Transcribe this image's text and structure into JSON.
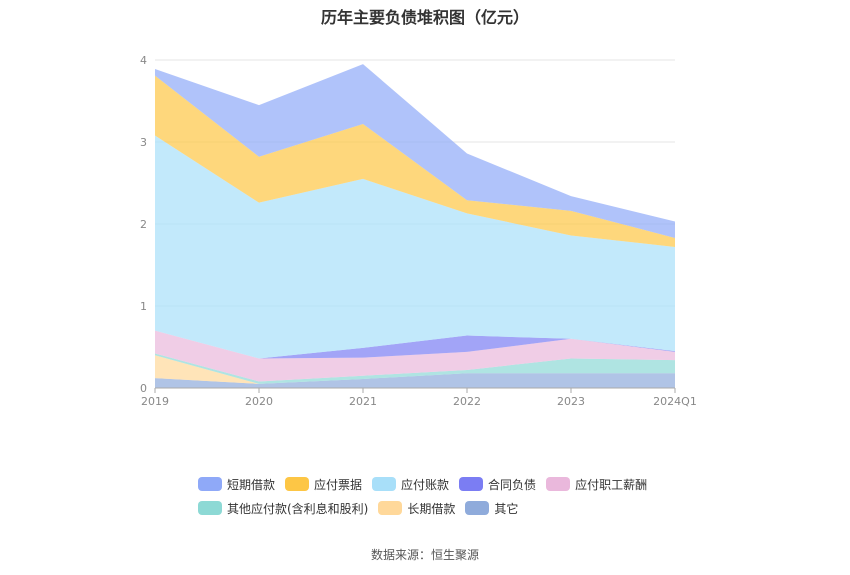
{
  "chart_data": {
    "type": "area",
    "title": "历年主要负债堆积图（亿元）",
    "source": "数据来源：恒生聚源",
    "categories": [
      "2019",
      "2020",
      "2021",
      "2022",
      "2023",
      "2024Q1"
    ],
    "ylim": [
      0,
      4
    ],
    "yticks": [
      "0",
      "1",
      "2",
      "3",
      "4"
    ],
    "grid": true,
    "legend_position": "bottom",
    "stacked": true,
    "series": [
      {
        "name": "其它",
        "color": "#8fabdb",
        "values": [
          0.12,
          0.05,
          0.11,
          0.18,
          0.18,
          0.18
        ]
      },
      {
        "name": "长期借款",
        "color": "#ffd89a",
        "values": [
          0.28,
          0.0,
          0.0,
          0.0,
          0.0,
          0.0
        ]
      },
      {
        "name": "其他应付款(含利息和股利)",
        "color": "#8dd9d5",
        "values": [
          0.02,
          0.03,
          0.04,
          0.04,
          0.18,
          0.16
        ]
      },
      {
        "name": "应付职工薪酬",
        "color": "#eab8dc",
        "values": [
          0.28,
          0.28,
          0.22,
          0.22,
          0.24,
          0.1
        ]
      },
      {
        "name": "合同负债",
        "color": "#7b7df3",
        "values": [
          0.0,
          0.0,
          0.12,
          0.2,
          0.0,
          0.01
        ]
      },
      {
        "name": "应付账款",
        "color": "#a8dff9",
        "values": [
          2.38,
          1.9,
          2.06,
          1.49,
          1.26,
          1.27
        ]
      },
      {
        "name": "应付票据",
        "color": "#fdc645",
        "values": [
          0.73,
          0.56,
          0.67,
          0.16,
          0.3,
          0.11
        ]
      },
      {
        "name": "短期借款",
        "color": "#8fa9f8",
        "values": [
          0.08,
          0.63,
          0.73,
          0.57,
          0.18,
          0.2
        ]
      }
    ],
    "legend_order": [
      "短期借款",
      "应付票据",
      "应付账款",
      "合同负债",
      "应付职工薪酬",
      "其他应付款(含利息和股利)",
      "长期借款",
      "其它"
    ]
  }
}
